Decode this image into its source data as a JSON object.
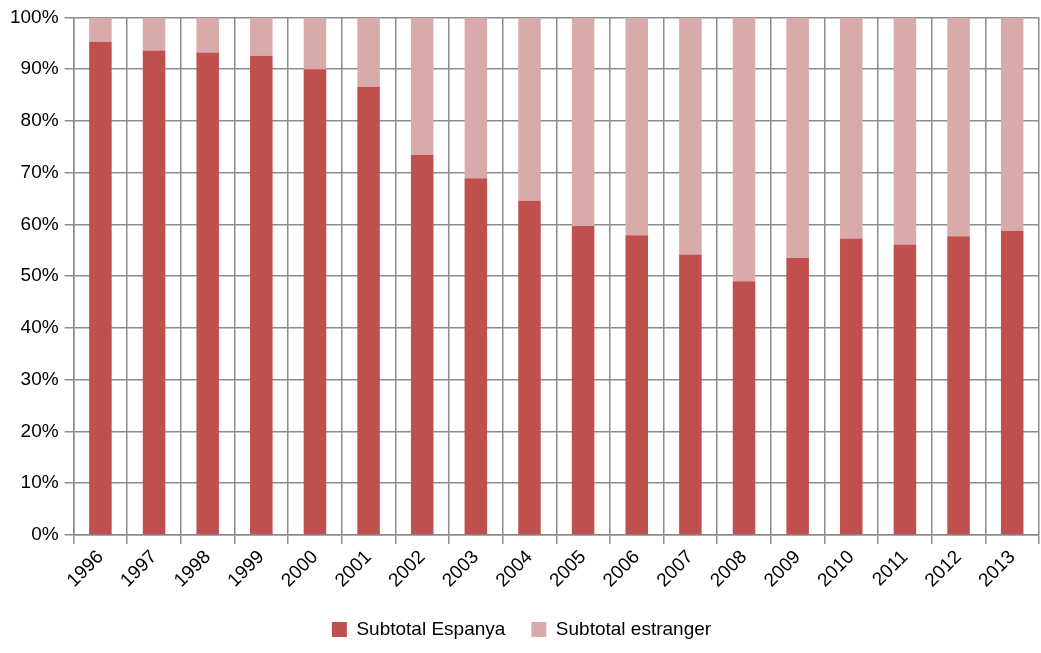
{
  "chart_data": {
    "type": "bar",
    "stacked": true,
    "grid": true,
    "legend": "bottom",
    "categories": [
      "1996",
      "1997",
      "1998",
      "1999",
      "2000",
      "2001",
      "2002",
      "2003",
      "2004",
      "2005",
      "2006",
      "2007",
      "2008",
      "2009",
      "2010",
      "2011",
      "2012",
      "2013"
    ],
    "series": [
      {
        "name": "Subtotal Espanya",
        "color": "#c0504d",
        "values": [
          95.3,
          93.6,
          93.2,
          92.6,
          90.0,
          86.6,
          73.4,
          68.9,
          64.6,
          59.7,
          57.9,
          54.2,
          49.0,
          53.5,
          57.3,
          56.1,
          57.7,
          58.8
        ]
      },
      {
        "name": "Subtotal estranger",
        "color": "#d9aaaa",
        "values": [
          4.7,
          6.4,
          6.8,
          7.4,
          10.0,
          13.4,
          26.6,
          31.1,
          35.4,
          40.3,
          42.1,
          45.8,
          51.0,
          46.5,
          42.7,
          43.9,
          42.3,
          41.2
        ]
      }
    ],
    "ylim": [
      0,
      100
    ],
    "yticks": [
      {
        "value": 0,
        "label": "0%"
      },
      {
        "value": 10,
        "label": "10%"
      },
      {
        "value": 20,
        "label": "20%"
      },
      {
        "value": 30,
        "label": "30%"
      },
      {
        "value": 40,
        "label": "40%"
      },
      {
        "value": 50,
        "label": "50%"
      },
      {
        "value": 60,
        "label": "60%"
      },
      {
        "value": 70,
        "label": "70%"
      },
      {
        "value": 80,
        "label": "80%"
      },
      {
        "value": 90,
        "label": "90%"
      },
      {
        "value": 100,
        "label": "100%"
      }
    ]
  }
}
